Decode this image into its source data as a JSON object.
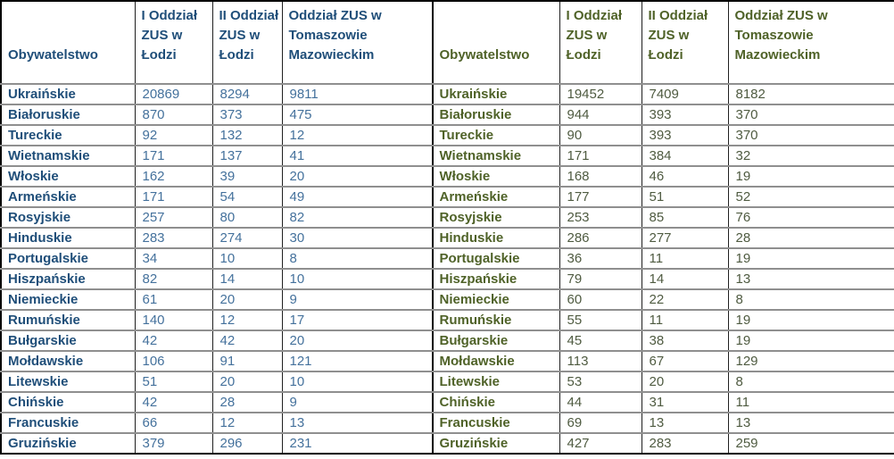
{
  "page": {
    "background": "#ffffff"
  },
  "tables": [
    {
      "name": "citizenship-zus-table-left",
      "theme": {
        "label_color": "#1F4E79",
        "value_color": "#44719C"
      },
      "columns": [
        "Obywatelstwo",
        "I Oddział ZUS w Łodzi",
        "II Oddział ZUS w Łodzi",
        "Oddział ZUS w Tomaszowie Mazowieckim"
      ],
      "rows": [
        [
          "Ukraińskie",
          20869,
          8294,
          9811
        ],
        [
          "Białoruskie",
          870,
          373,
          475
        ],
        [
          "Tureckie",
          92,
          132,
          12
        ],
        [
          "Wietnamskie",
          171,
          137,
          41
        ],
        [
          "Włoskie",
          162,
          39,
          20
        ],
        [
          "Armeńskie",
          171,
          54,
          49
        ],
        [
          "Rosyjskie",
          257,
          80,
          82
        ],
        [
          "Hinduskie",
          283,
          274,
          30
        ],
        [
          "Portugalskie",
          34,
          10,
          8
        ],
        [
          "Hiszpańskie",
          82,
          14,
          10
        ],
        [
          "Niemieckie",
          61,
          20,
          9
        ],
        [
          "Rumuńskie",
          140,
          12,
          17
        ],
        [
          "Bułgarskie",
          42,
          42,
          20
        ],
        [
          "Mołdawskie",
          106,
          91,
          121
        ],
        [
          "Litewskie",
          51,
          20,
          10
        ],
        [
          "Chińskie",
          42,
          28,
          9
        ],
        [
          "Francuskie",
          66,
          12,
          13
        ],
        [
          "Gruzińskie",
          379,
          296,
          231
        ]
      ]
    },
    {
      "name": "citizenship-zus-table-right",
      "theme": {
        "label_color": "#4F6228",
        "value_color": "#4F5B41"
      },
      "columns": [
        "Obywatelstwo",
        "I Oddział ZUS w Łodzi",
        "II Oddział ZUS w Łodzi",
        "Oddział ZUS w Tomaszowie Mazowieckim"
      ],
      "rows": [
        [
          "Ukraińskie",
          19452,
          7409,
          8182
        ],
        [
          "Białoruskie",
          944,
          393,
          370
        ],
        [
          "Tureckie",
          90,
          393,
          370
        ],
        [
          "Wietnamskie",
          171,
          384,
          32
        ],
        [
          "Włoskie",
          168,
          46,
          19
        ],
        [
          "Armeńskie",
          177,
          51,
          52
        ],
        [
          "Rosyjskie",
          253,
          85,
          76
        ],
        [
          "Hinduskie",
          286,
          277,
          28
        ],
        [
          "Portugalskie",
          36,
          11,
          19
        ],
        [
          "Hiszpańskie",
          79,
          14,
          13
        ],
        [
          "Niemieckie",
          60,
          22,
          8
        ],
        [
          "Rumuńskie",
          55,
          11,
          19
        ],
        [
          "Bułgarskie",
          45,
          38,
          19
        ],
        [
          "Mołdawskie",
          113,
          67,
          129
        ],
        [
          "Litewskie",
          53,
          20,
          8
        ],
        [
          "Chińskie",
          44,
          31,
          11
        ],
        [
          "Francuskie",
          69,
          13,
          13
        ],
        [
          "Gruzińskie",
          427,
          283,
          259
        ]
      ]
    }
  ]
}
